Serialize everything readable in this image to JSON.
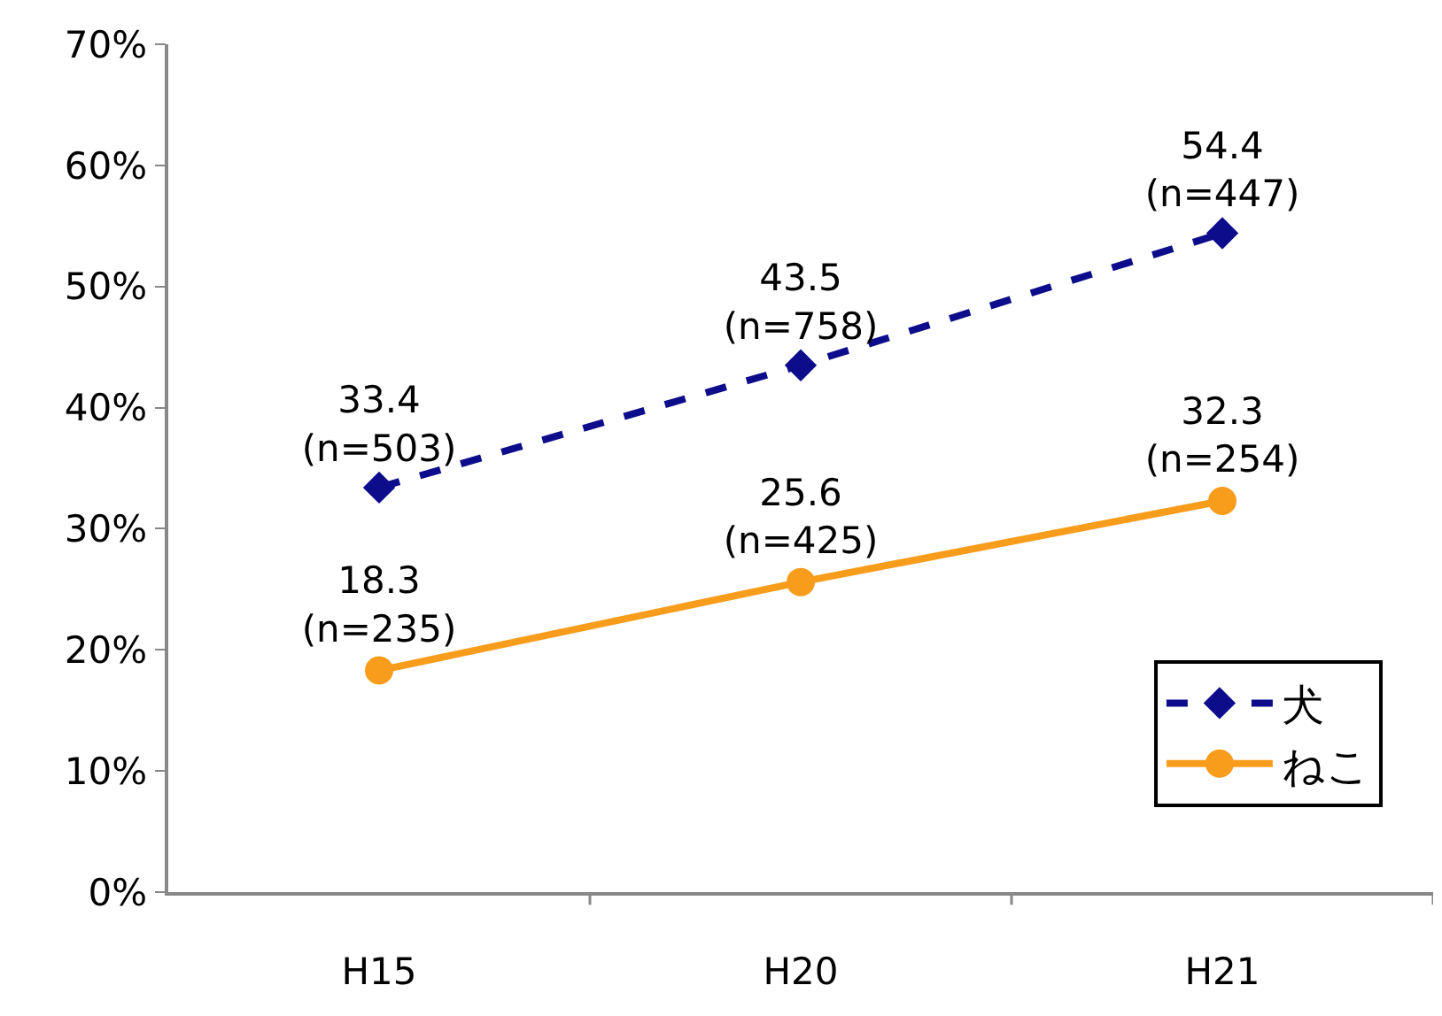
{
  "chart_data": {
    "type": "line",
    "categories": [
      "H15",
      "H20",
      "H21"
    ],
    "series": [
      {
        "name": "犬",
        "color": "#0d0d8c",
        "marker": "diamond",
        "line_style": "dashed",
        "values": [
          33.4,
          43.5,
          54.4
        ],
        "value_labels": [
          "33.4\n(n=503)",
          "43.5\n(n=758)",
          "54.4\n(n=447)"
        ]
      },
      {
        "name": "ねこ",
        "color": "#f89c1c",
        "marker": "circle",
        "line_style": "solid",
        "values": [
          18.3,
          25.6,
          32.3
        ],
        "value_labels": [
          "18.3\n(n=235)",
          "25.6\n(n=425)",
          "32.3\n(n=254)"
        ]
      }
    ],
    "ylim": [
      0,
      70
    ],
    "yticks": [
      {
        "value": 0,
        "label": "0%"
      },
      {
        "value": 10,
        "label": "10%"
      },
      {
        "value": 20,
        "label": "20%"
      },
      {
        "value": 30,
        "label": "30%"
      },
      {
        "value": 40,
        "label": "40%"
      },
      {
        "value": 50,
        "label": "50%"
      },
      {
        "value": 60,
        "label": "60%"
      },
      {
        "value": 70,
        "label": "70%"
      }
    ],
    "legend": "bottom right"
  }
}
